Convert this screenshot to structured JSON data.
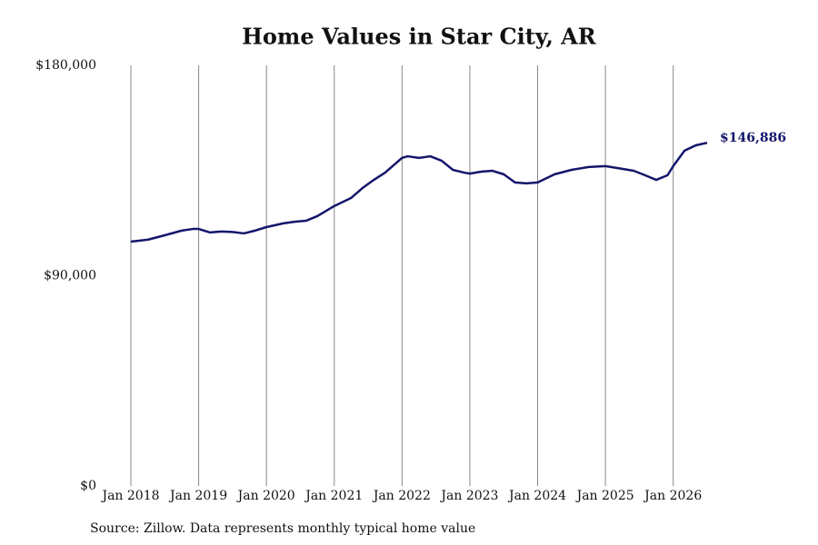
{
  "chart_data": {
    "type": "line",
    "title": "Home Values in Star City, AR",
    "note": "Source: Zillow. Data represents monthly typical home value",
    "x": [
      "2018-01",
      "2018-04",
      "2018-07",
      "2018-10",
      "2018-12",
      "2019-01",
      "2019-03",
      "2019-05",
      "2019-07",
      "2019-09",
      "2019-11",
      "2020-01",
      "2020-04",
      "2020-06",
      "2020-08",
      "2020-10",
      "2021-01",
      "2021-04",
      "2021-06",
      "2021-08",
      "2021-10",
      "2022-01",
      "2022-02",
      "2022-04",
      "2022-06",
      "2022-08",
      "2022-10",
      "2022-12",
      "2023-01",
      "2023-03",
      "2023-05",
      "2023-07",
      "2023-09",
      "2023-11",
      "2024-01",
      "2024-04",
      "2024-07",
      "2024-10",
      "2025-01",
      "2025-03",
      "2025-06",
      "2025-08",
      "2025-10",
      "2025-12",
      "2026-01",
      "2026-03",
      "2026-05",
      "2026-07"
    ],
    "series": [
      {
        "color": "#14166b",
        "values": [
          104600,
          105400,
          107300,
          109300,
          110000,
          110000,
          108500,
          108900,
          108700,
          108100,
          109300,
          110800,
          112400,
          113100,
          113500,
          115500,
          119800,
          123300,
          127500,
          131000,
          134100,
          140400,
          141100,
          140400,
          141100,
          139200,
          135300,
          134100,
          133700,
          134500,
          134900,
          133400,
          129900,
          129500,
          129900,
          133400,
          135300,
          136500,
          136900,
          136100,
          134900,
          133000,
          131000,
          133000,
          136900,
          143500,
          145800,
          146886
        ],
        "value_labels": [
          null,
          null,
          null,
          null,
          null,
          null,
          null,
          null,
          null,
          null,
          null,
          null,
          null,
          null,
          null,
          null,
          null,
          null,
          null,
          null,
          null,
          null,
          null,
          null,
          null,
          null,
          null,
          null,
          null,
          null,
          null,
          null,
          null,
          null,
          null,
          null,
          null,
          null,
          null,
          null,
          null,
          null,
          null,
          null,
          null,
          null,
          null,
          "$146,886"
        ]
      }
    ],
    "xlim": [
      "2018-01",
      "2026-07"
    ],
    "xticks": [
      {
        "value": "2018-01",
        "label": "Jan 2018"
      },
      {
        "value": "2019-01",
        "label": "Jan 2019"
      },
      {
        "value": "2020-01",
        "label": "Jan 2020"
      },
      {
        "value": "2021-01",
        "label": "Jan 2021"
      },
      {
        "value": "2022-01",
        "label": "Jan 2022"
      },
      {
        "value": "2023-01",
        "label": "Jan 2023"
      },
      {
        "value": "2024-01",
        "label": "Jan 2024"
      },
      {
        "value": "2025-01",
        "label": "Jan 2025"
      },
      {
        "value": "2026-01",
        "label": "Jan 2026"
      }
    ],
    "ylim": [
      0,
      180000
    ],
    "yticks": [
      {
        "value": 0,
        "label": "$0"
      },
      {
        "value": 90000,
        "label": "$90,000"
      },
      {
        "value": 180000,
        "label": "$180,000"
      }
    ],
    "grid": "x"
  }
}
